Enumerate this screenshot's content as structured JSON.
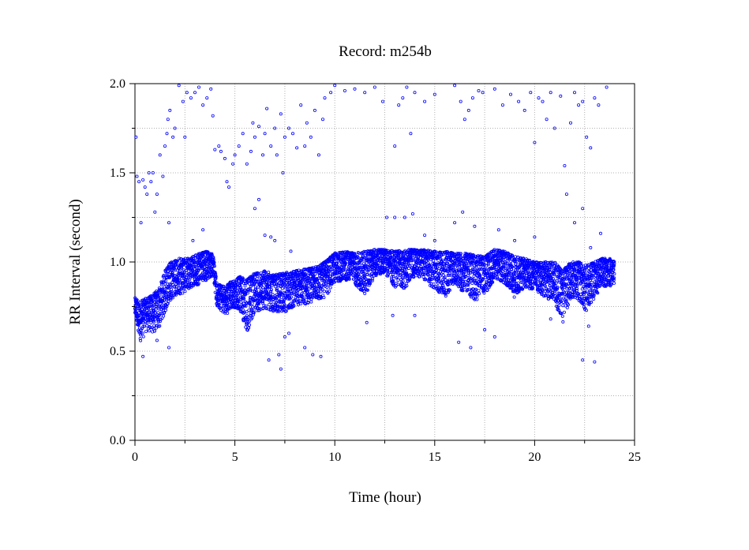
{
  "chart_data": {
    "type": "scatter",
    "title": "Record:  m254b",
    "xlabel": "Time (hour)",
    "ylabel": "RR Interval (second)",
    "xlim": [
      0,
      25
    ],
    "ylim": [
      0.0,
      2.0
    ],
    "x_ticks": [
      "0",
      "5",
      "10",
      "15",
      "20",
      "25"
    ],
    "y_ticks": [
      "0.0",
      "0.5",
      "1.0",
      "1.5",
      "2.0"
    ],
    "grid": true,
    "marker": "open-circle",
    "color": "#0000ff",
    "series": [
      {
        "band": [
          [
            0.0,
            0.68,
            0.8
          ],
          [
            0.3,
            0.55,
            0.78
          ],
          [
            0.6,
            0.62,
            0.8
          ],
          [
            0.9,
            0.6,
            0.82
          ],
          [
            1.2,
            0.62,
            0.85
          ],
          [
            1.5,
            0.72,
            0.95
          ],
          [
            1.8,
            0.78,
            1.0
          ],
          [
            2.1,
            0.82,
            1.02
          ],
          [
            2.4,
            0.82,
            1.02
          ],
          [
            2.7,
            0.85,
            1.02
          ],
          [
            3.0,
            0.86,
            1.04
          ],
          [
            3.3,
            0.88,
            1.05
          ],
          [
            3.6,
            0.9,
            1.06
          ],
          [
            3.9,
            0.92,
            1.05
          ],
          [
            4.1,
            0.75,
            0.88
          ],
          [
            4.5,
            0.7,
            0.86
          ],
          [
            4.9,
            0.74,
            0.9
          ],
          [
            5.3,
            0.72,
            0.92
          ],
          [
            5.6,
            0.6,
            0.9
          ],
          [
            6.0,
            0.72,
            0.94
          ],
          [
            6.5,
            0.74,
            0.95
          ],
          [
            7.0,
            0.72,
            0.93
          ],
          [
            7.5,
            0.72,
            0.94
          ],
          [
            8.0,
            0.75,
            0.95
          ],
          [
            8.5,
            0.76,
            0.96
          ],
          [
            9.0,
            0.78,
            0.97
          ],
          [
            9.5,
            0.8,
            1.0
          ],
          [
            10.0,
            0.88,
            1.05
          ],
          [
            10.5,
            0.9,
            1.06
          ],
          [
            11.0,
            0.88,
            1.05
          ],
          [
            11.5,
            0.8,
            1.06
          ],
          [
            12.0,
            0.92,
            1.07
          ],
          [
            12.5,
            0.94,
            1.07
          ],
          [
            13.0,
            0.86,
            1.06
          ],
          [
            13.5,
            0.85,
            1.07
          ],
          [
            14.0,
            0.92,
            1.07
          ],
          [
            14.5,
            0.9,
            1.07
          ],
          [
            15.0,
            0.84,
            1.06
          ],
          [
            15.5,
            0.8,
            1.06
          ],
          [
            16.0,
            0.88,
            1.05
          ],
          [
            16.5,
            0.82,
            1.05
          ],
          [
            17.0,
            0.78,
            1.04
          ],
          [
            17.5,
            0.82,
            1.03
          ],
          [
            18.0,
            0.9,
            1.07
          ],
          [
            18.5,
            0.88,
            1.06
          ],
          [
            19.0,
            0.8,
            1.03
          ],
          [
            19.5,
            0.86,
            1.02
          ],
          [
            20.0,
            0.84,
            1.0
          ],
          [
            20.5,
            0.8,
            1.0
          ],
          [
            21.0,
            0.78,
            1.0
          ],
          [
            21.4,
            0.65,
            0.95
          ],
          [
            21.8,
            0.8,
            1.0
          ],
          [
            22.2,
            0.78,
            1.0
          ],
          [
            22.6,
            0.72,
            0.98
          ],
          [
            23.0,
            0.8,
            1.0
          ],
          [
            23.4,
            0.86,
            1.02
          ],
          [
            23.8,
            0.86,
            1.02
          ],
          [
            24.0,
            0.88,
            1.0
          ]
        ],
        "outliers": [
          [
            0.05,
            1.7
          ],
          [
            0.1,
            1.48
          ],
          [
            0.2,
            1.45
          ],
          [
            0.3,
            1.22
          ],
          [
            0.4,
            1.46
          ],
          [
            0.5,
            1.42
          ],
          [
            0.6,
            1.38
          ],
          [
            0.7,
            1.5
          ],
          [
            0.8,
            1.45
          ],
          [
            0.9,
            1.5
          ],
          [
            1.0,
            1.28
          ],
          [
            1.1,
            1.38
          ],
          [
            1.25,
            1.6
          ],
          [
            1.4,
            1.48
          ],
          [
            1.5,
            1.65
          ],
          [
            1.6,
            1.72
          ],
          [
            1.65,
            1.8
          ],
          [
            1.7,
            1.22
          ],
          [
            1.75,
            1.85
          ],
          [
            1.9,
            1.7
          ],
          [
            2.0,
            1.75
          ],
          [
            2.2,
            1.99
          ],
          [
            2.4,
            1.9
          ],
          [
            2.6,
            1.95
          ],
          [
            2.8,
            1.92
          ],
          [
            3.0,
            1.95
          ],
          [
            3.2,
            1.98
          ],
          [
            3.4,
            1.88
          ],
          [
            3.6,
            1.92
          ],
          [
            3.8,
            1.97
          ],
          [
            3.9,
            1.82
          ],
          [
            2.5,
            1.7
          ],
          [
            4.0,
            1.63
          ],
          [
            4.2,
            1.65
          ],
          [
            4.3,
            1.62
          ],
          [
            4.5,
            1.58
          ],
          [
            4.6,
            1.45
          ],
          [
            4.7,
            1.42
          ],
          [
            4.9,
            1.55
          ],
          [
            5.0,
            1.6
          ],
          [
            5.2,
            1.65
          ],
          [
            5.4,
            1.72
          ],
          [
            5.6,
            1.55
          ],
          [
            5.8,
            1.62
          ],
          [
            5.9,
            1.78
          ],
          [
            6.0,
            1.7
          ],
          [
            6.2,
            1.76
          ],
          [
            6.4,
            1.6
          ],
          [
            6.5,
            1.72
          ],
          [
            6.6,
            1.86
          ],
          [
            6.8,
            1.65
          ],
          [
            7.0,
            1.75
          ],
          [
            7.1,
            1.6
          ],
          [
            7.3,
            1.83
          ],
          [
            7.4,
            1.5
          ],
          [
            7.5,
            1.7
          ],
          [
            7.7,
            1.75
          ],
          [
            7.9,
            1.72
          ],
          [
            8.1,
            1.64
          ],
          [
            8.3,
            1.88
          ],
          [
            8.5,
            1.65
          ],
          [
            8.6,
            1.78
          ],
          [
            8.8,
            1.7
          ],
          [
            9.0,
            1.85
          ],
          [
            9.2,
            1.6
          ],
          [
            9.4,
            1.8
          ],
          [
            9.5,
            1.92
          ],
          [
            9.8,
            1.95
          ],
          [
            10.0,
            1.99
          ],
          [
            10.5,
            1.96
          ],
          [
            11.0,
            1.97
          ],
          [
            11.5,
            1.95
          ],
          [
            12.0,
            1.98
          ],
          [
            12.4,
            1.9
          ],
          [
            13.2,
            1.88
          ],
          [
            13.4,
            1.92
          ],
          [
            13.6,
            1.98
          ],
          [
            14.0,
            1.95
          ],
          [
            14.5,
            1.9
          ],
          [
            15.0,
            1.94
          ],
          [
            16.0,
            1.99
          ],
          [
            16.3,
            1.9
          ],
          [
            16.5,
            1.8
          ],
          [
            16.7,
            1.85
          ],
          [
            16.9,
            1.92
          ],
          [
            17.2,
            1.96
          ],
          [
            17.4,
            1.95
          ],
          [
            18.0,
            1.97
          ],
          [
            18.4,
            1.88
          ],
          [
            18.8,
            1.94
          ],
          [
            19.2,
            1.9
          ],
          [
            19.5,
            1.85
          ],
          [
            19.8,
            1.95
          ],
          [
            20.0,
            1.67
          ],
          [
            20.2,
            1.92
          ],
          [
            20.4,
            1.9
          ],
          [
            20.6,
            1.8
          ],
          [
            20.8,
            1.95
          ],
          [
            21.0,
            1.75
          ],
          [
            21.3,
            1.93
          ],
          [
            21.5,
            1.54
          ],
          [
            21.6,
            1.38
          ],
          [
            21.8,
            1.78
          ],
          [
            22.0,
            1.95
          ],
          [
            22.2,
            1.88
          ],
          [
            22.4,
            1.9
          ],
          [
            22.6,
            1.7
          ],
          [
            22.8,
            1.64
          ],
          [
            23.0,
            1.92
          ],
          [
            23.2,
            1.88
          ],
          [
            23.6,
            1.98
          ],
          [
            13.0,
            1.65
          ],
          [
            13.8,
            1.72
          ],
          [
            16.6,
            1.02
          ],
          [
            16.8,
            0.52
          ],
          [
            17.5,
            0.62
          ],
          [
            16.2,
            0.55
          ],
          [
            6.2,
            1.35
          ],
          [
            6.0,
            1.3
          ],
          [
            6.5,
            1.15
          ],
          [
            6.8,
            1.14
          ],
          [
            7.0,
            1.12
          ],
          [
            7.8,
            1.06
          ],
          [
            3.4,
            1.18
          ],
          [
            2.9,
            1.12
          ],
          [
            12.6,
            1.25
          ],
          [
            13.0,
            1.25
          ],
          [
            13.5,
            1.25
          ],
          [
            13.9,
            1.27
          ],
          [
            14.5,
            1.15
          ],
          [
            15.0,
            1.12
          ],
          [
            16.0,
            1.22
          ],
          [
            16.4,
            1.28
          ],
          [
            17.0,
            1.2
          ],
          [
            18.2,
            1.18
          ],
          [
            19.0,
            1.12
          ],
          [
            20.0,
            1.14
          ],
          [
            22.0,
            1.22
          ],
          [
            22.4,
            1.3
          ],
          [
            22.8,
            1.08
          ],
          [
            23.3,
            1.16
          ],
          [
            6.7,
            0.45
          ],
          [
            7.2,
            0.48
          ],
          [
            7.3,
            0.4
          ],
          [
            8.5,
            0.52
          ],
          [
            8.9,
            0.48
          ],
          [
            9.3,
            0.47
          ],
          [
            7.5,
            0.58
          ],
          [
            7.7,
            0.6
          ],
          [
            0.4,
            0.47
          ],
          [
            1.1,
            0.56
          ],
          [
            1.7,
            0.52
          ],
          [
            22.4,
            0.45
          ],
          [
            23.0,
            0.44
          ],
          [
            22.7,
            0.64
          ],
          [
            11.6,
            0.66
          ],
          [
            12.9,
            0.7
          ],
          [
            14.0,
            0.7
          ],
          [
            20.8,
            0.68
          ],
          [
            18.0,
            0.58
          ]
        ]
      }
    ]
  }
}
